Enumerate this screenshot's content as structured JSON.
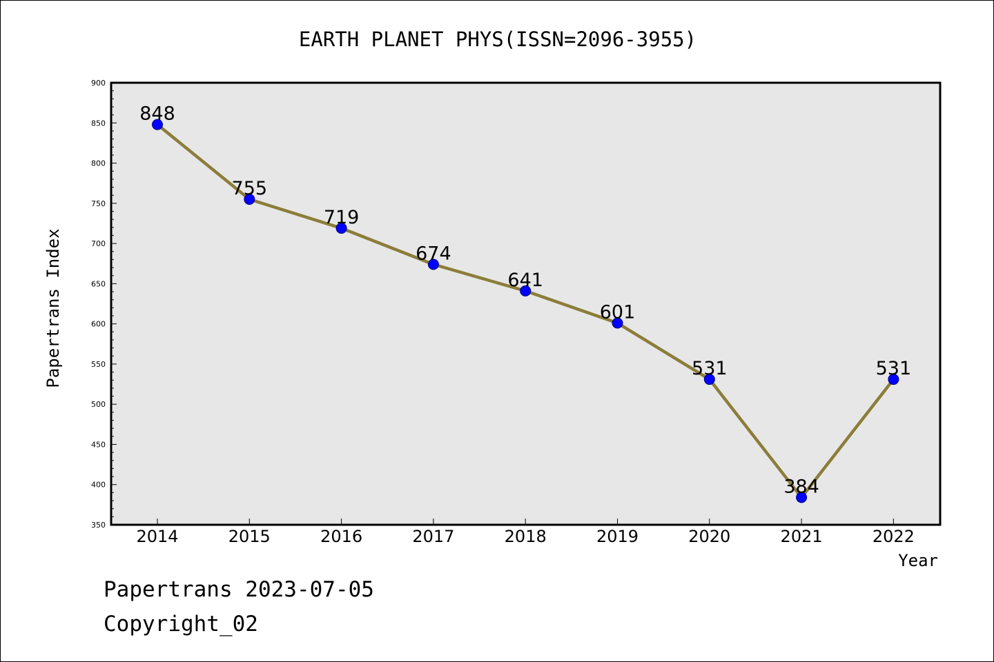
{
  "chart_data": {
    "type": "line",
    "title": "EARTH PLANET PHYS(ISSN=2096-3955)",
    "xlabel": "Year",
    "ylabel": "Papertrans Index",
    "categories": [
      "2014",
      "2015",
      "2016",
      "2017",
      "2018",
      "2019",
      "2020",
      "2021",
      "2022"
    ],
    "values": [
      848,
      755,
      719,
      674,
      641,
      601,
      531,
      384,
      531
    ],
    "data_labels": [
      "848",
      "755",
      "719",
      "674",
      "641",
      "601",
      "531",
      "384",
      "531"
    ],
    "ylim": [
      350,
      900
    ],
    "yticks": [
      350,
      400,
      450,
      500,
      550,
      600,
      650,
      700,
      750,
      800,
      850,
      900
    ],
    "ytick_labels": [
      "350",
      "400",
      "450",
      "500",
      "550",
      "600",
      "650",
      "700",
      "750",
      "800",
      "850",
      "900"
    ],
    "grid": false,
    "line_color": "#8b7d3a",
    "marker_color": "#0000ff",
    "plot_background": "#e7e7e7"
  },
  "footer": {
    "line1": "Papertrans 2023-07-05",
    "line2": "Copyright_02"
  }
}
